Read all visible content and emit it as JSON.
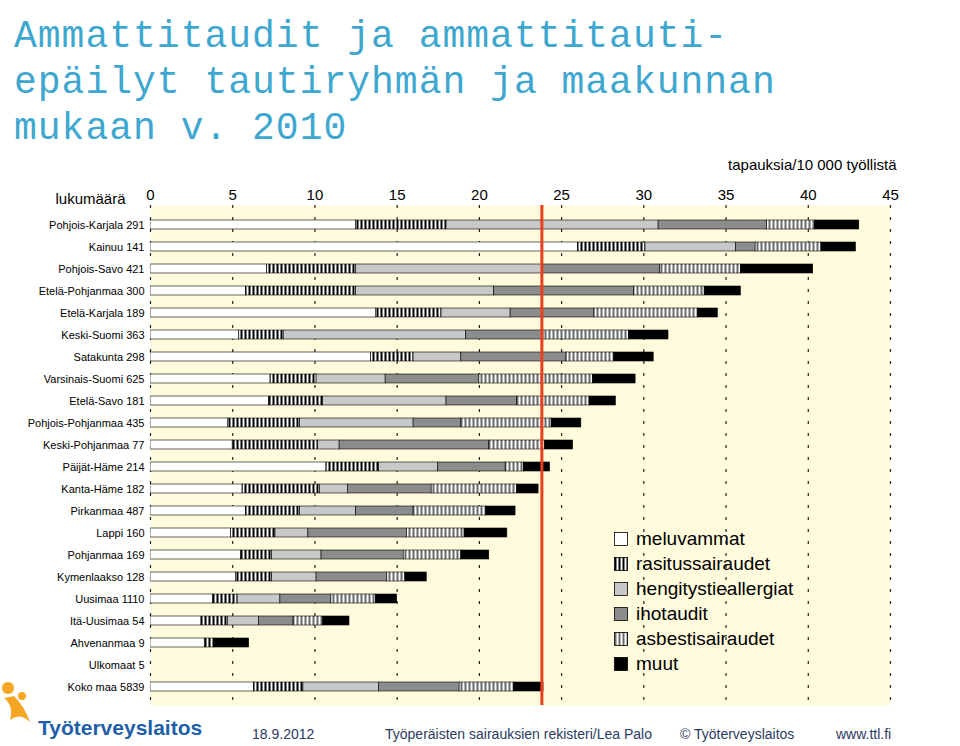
{
  "chart_data": {
    "type": "bar",
    "orientation": "horizontal",
    "stacked": true,
    "title": "Ammattitaudit ja ammattitauti-epäilyt tautiryhmän ja maakunnan mukaan v. 2010",
    "x_label": "tapauksia/10 000 työllistä",
    "y_label": "lukumäärä",
    "categories": [
      "Pohjois-Karjala 291",
      "Kainuu 141",
      "Pohjois-Savo 421",
      "Etelä-Pohjanmaa 300",
      "Etelä-Karjala 189",
      "Keski-Suomi 363",
      "Satakunta 298",
      "Varsinais-Suomi 625",
      "Etelä-Savo 181",
      "Pohjois-Pohjanmaa 435",
      "Keski-Pohjanmaa 77",
      "Päijät-Häme 214",
      "Kanta-Häme 182",
      "Pirkanmaa 487",
      "Lappi 160",
      "Pohjanmaa 169",
      "Kymenlaakso 128",
      "Uusimaa 1110",
      "Itä-Uusimaa 54",
      "Ahvenanmaa 9",
      "Ulkomaat 5",
      "Koko maa 5839"
    ],
    "series": [
      {
        "name": "meluvammat",
        "color": "#ffffff",
        "values": [
          12.5,
          26.0,
          7.1,
          5.8,
          13.7,
          5.4,
          13.4,
          7.3,
          7.2,
          4.7,
          5.0,
          10.7,
          5.6,
          5.8,
          4.9,
          5.5,
          5.2,
          3.8,
          3.1,
          3.3,
          0,
          6.3
        ]
      },
      {
        "name": "rasitussairaudet",
        "color": "#000000",
        "line_style": "striped",
        "values": [
          5.5,
          4.1,
          5.4,
          6.7,
          4.0,
          2.7,
          2.6,
          2.8,
          3.3,
          4.4,
          5.2,
          3.2,
          4.7,
          3.3,
          2.7,
          1.9,
          2.2,
          1.5,
          1.6,
          0.6,
          0,
          3.0
        ]
      },
      {
        "name": "hengitystieallergiat",
        "color": "#c8c8c8",
        "values": [
          12.9,
          5.5,
          11.3,
          8.4,
          4.2,
          11.1,
          2.9,
          4.2,
          7.5,
          6.9,
          1.3,
          3.6,
          1.7,
          3.4,
          2.0,
          3.0,
          2.7,
          2.6,
          1.9,
          0,
          0,
          4.6
        ]
      },
      {
        "name": "ihotaudit",
        "color": "#8c8c8c",
        "values": [
          6.6,
          1.2,
          7.2,
          8.5,
          5.1,
          4.7,
          6.4,
          5.7,
          4.3,
          2.9,
          9.1,
          4.1,
          5.1,
          3.5,
          6.0,
          5.0,
          4.3,
          3.1,
          2.1,
          0,
          0,
          4.9
        ]
      },
      {
        "name": "asbestisairaudet",
        "color": "#6a6a6a",
        "line_style": "striped",
        "values": [
          2.9,
          4.0,
          4.9,
          4.3,
          6.3,
          5.2,
          2.9,
          6.9,
          4.4,
          5.5,
          3.4,
          1.1,
          5.2,
          4.4,
          3.5,
          3.5,
          1.1,
          2.7,
          1.8,
          0,
          0,
          3.3
        ]
      },
      {
        "name": "muut",
        "color": "#000000",
        "values": [
          2.7,
          2.1,
          4.4,
          2.2,
          1.2,
          2.4,
          2.4,
          2.6,
          1.6,
          1.8,
          1.7,
          1.6,
          1.3,
          1.8,
          2.6,
          1.7,
          1.3,
          1.3,
          1.6,
          2.1,
          0,
          1.8
        ]
      }
    ],
    "xlim": [
      0,
      45
    ],
    "xticks": [
      0,
      5,
      10,
      15,
      20,
      25,
      30,
      35,
      40,
      45
    ],
    "grid": true,
    "legend": "bottom-right",
    "reference_line": {
      "value": 23.8,
      "color": "#e8401c"
    }
  },
  "footer": {
    "logo": "Työterveyslaitos",
    "date": "18.9.2012",
    "source": "Työperäisten sairauksien rekisteri/Lea Palo",
    "copyright": "© Työterveyslaitos",
    "url": "www.ttl.fi"
  }
}
